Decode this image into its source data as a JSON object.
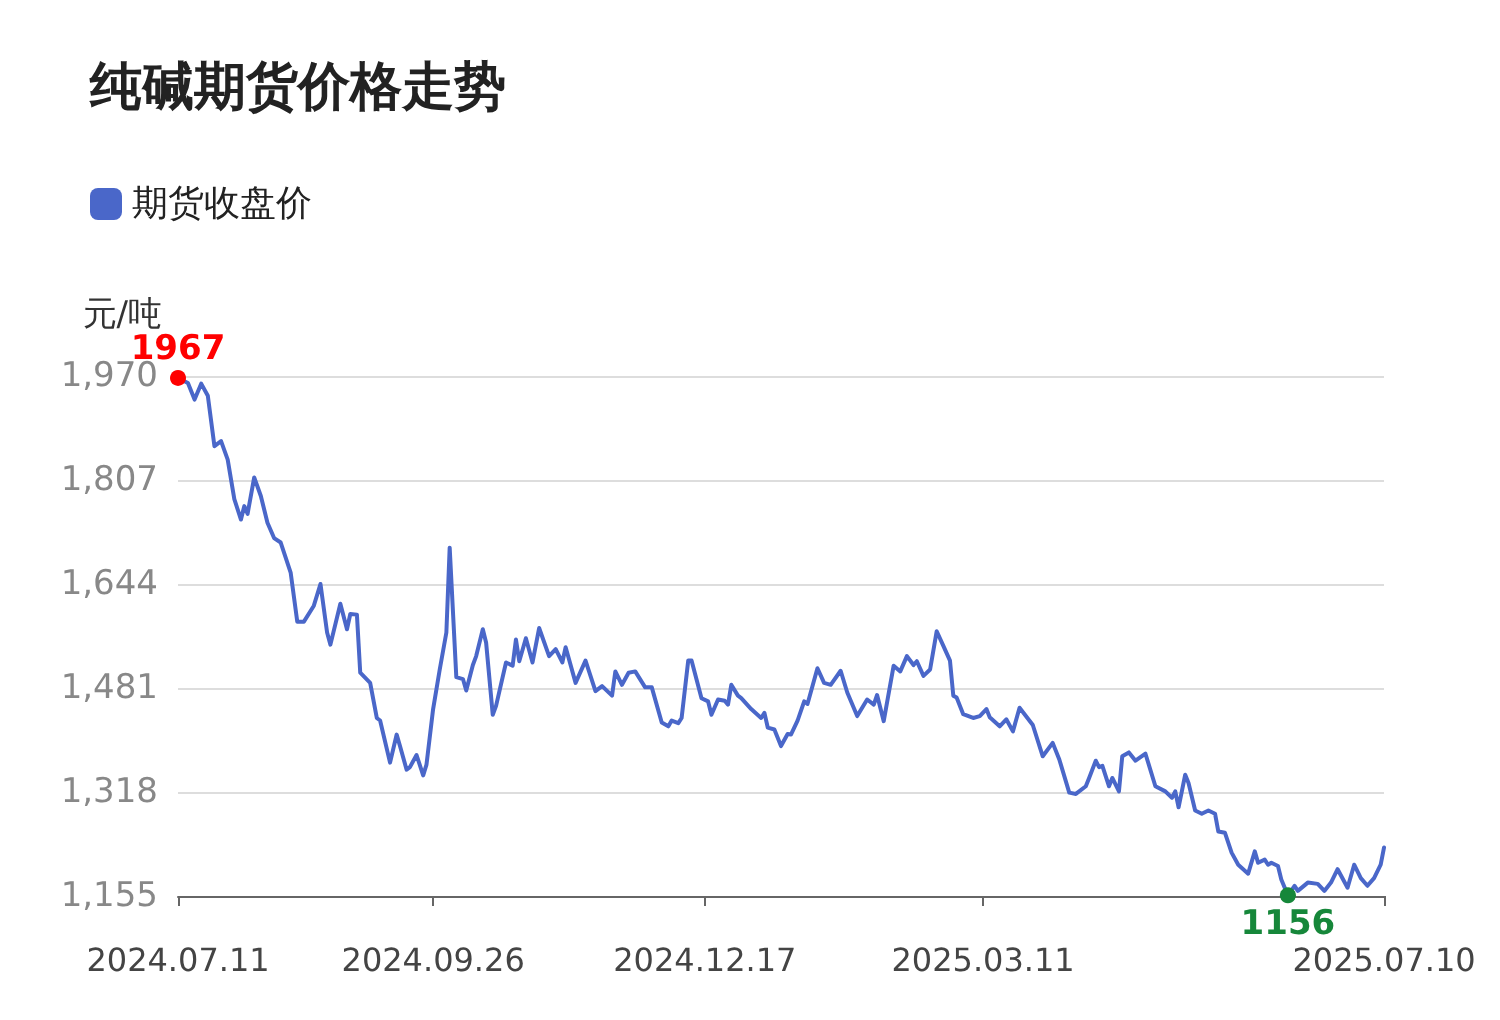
{
  "chart_data": {
    "type": "line",
    "title": "纯碱期货价格走势",
    "ylabel": "元/吨",
    "legend": "top left",
    "grid": "y",
    "marker": "none",
    "line_style": "solid",
    "ylim": [
      1155,
      1970
    ],
    "yticks": [
      {
        "value": 1155,
        "label": "1,155"
      },
      {
        "value": 1318,
        "label": "1,318"
      },
      {
        "value": 1481,
        "label": "1,481"
      },
      {
        "value": 1644,
        "label": "1,644"
      },
      {
        "value": 1807,
        "label": "1,807"
      },
      {
        "value": 1970,
        "label": "1,970"
      }
    ],
    "xlim": [
      "2024-07-11",
      "2025-07-10"
    ],
    "xticks": [
      {
        "value": "2024-07-11",
        "label": "2024.07.11"
      },
      {
        "value": "2024-09-26",
        "label": "2024.09.26"
      },
      {
        "value": "2024-12-17",
        "label": "2024.12.17"
      },
      {
        "value": "2025-03-11",
        "label": "2025.03.11"
      },
      {
        "value": "2025-07-10",
        "label": "2025.07.10"
      }
    ],
    "annotations": [
      {
        "text": "1967",
        "x": "2024-07-11",
        "y": 1967
      },
      {
        "text": "1156",
        "x": "2025-06-11",
        "y": 1156
      }
    ],
    "series": [
      {
        "name": "期货收盘价",
        "color": "#4a67c9",
        "x": [
          "2024-07-11",
          "2024-07-14",
          "2024-07-16",
          "2024-07-18",
          "2024-07-20",
          "2024-07-22",
          "2024-07-24",
          "2024-07-26",
          "2024-07-28",
          "2024-07-30",
          "2024-07-31",
          "2024-08-01",
          "2024-08-03",
          "2024-08-05",
          "2024-08-07",
          "2024-08-09",
          "2024-08-11",
          "2024-08-14",
          "2024-08-16",
          "2024-08-18",
          "2024-08-21",
          "2024-08-23",
          "2024-08-25",
          "2024-08-26",
          "2024-08-29",
          "2024-08-31",
          "2024-09-01",
          "2024-09-03",
          "2024-09-04",
          "2024-09-07",
          "2024-09-09",
          "2024-09-10",
          "2024-09-13",
          "2024-09-15",
          "2024-09-16",
          "2024-09-18",
          "2024-09-19",
          "2024-09-21",
          "2024-09-23",
          "2024-09-24",
          "2024-09-26",
          "2024-09-28",
          "2024-09-30",
          "2024-10-01",
          "2024-10-03",
          "2024-10-05",
          "2024-10-06",
          "2024-10-08",
          "2024-10-09",
          "2024-10-11",
          "2024-10-12",
          "2024-10-14",
          "2024-10-15",
          "2024-10-18",
          "2024-10-20",
          "2024-10-21",
          "2024-10-22",
          "2024-10-24",
          "2024-10-26",
          "2024-10-28",
          "2024-10-31",
          "2024-11-02",
          "2024-11-04",
          "2024-11-05",
          "2024-11-08",
          "2024-11-11",
          "2024-11-14",
          "2024-11-16",
          "2024-11-19",
          "2024-11-20",
          "2024-11-22",
          "2024-11-24",
          "2024-11-26",
          "2024-11-29",
          "2024-12-01",
          "2024-12-04",
          "2024-12-06",
          "2024-12-07",
          "2024-12-09",
          "2024-12-10",
          "2024-12-12",
          "2024-12-13",
          "2024-12-16",
          "2024-12-18",
          "2024-12-19",
          "2024-12-21",
          "2024-12-23",
          "2024-12-24",
          "2024-12-25",
          "2024-12-27",
          "2024-12-28",
          "2024-12-31",
          "2025-01-03",
          "2025-01-04",
          "2025-01-05",
          "2025-01-07",
          "2025-01-09",
          "2025-01-11",
          "2025-01-12",
          "2025-01-14",
          "2025-01-16",
          "2025-01-17",
          "2025-01-20",
          "2025-01-22",
          "2025-01-24",
          "2025-01-27",
          "2025-01-29",
          "2025-02-01",
          "2025-02-04",
          "2025-02-06",
          "2025-02-07",
          "2025-02-09",
          "2025-02-12",
          "2025-02-14",
          "2025-02-16",
          "2025-02-18",
          "2025-02-19",
          "2025-02-21",
          "2025-02-23",
          "2025-02-25",
          "2025-02-27",
          "2025-03-01",
          "2025-03-02",
          "2025-03-03",
          "2025-03-05",
          "2025-03-08",
          "2025-03-10",
          "2025-03-12",
          "2025-03-13",
          "2025-03-16",
          "2025-03-18",
          "2025-03-20",
          "2025-03-22",
          "2025-03-26",
          "2025-03-29",
          "2025-04-01",
          "2025-04-03",
          "2025-04-06",
          "2025-04-08",
          "2025-04-11",
          "2025-04-12",
          "2025-04-14",
          "2025-04-15",
          "2025-04-16",
          "2025-04-18",
          "2025-04-19",
          "2025-04-21",
          "2025-04-22",
          "2025-04-24",
          "2025-04-26",
          "2025-04-29",
          "2025-05-02",
          "2025-05-05",
          "2025-05-07",
          "2025-05-08",
          "2025-05-09",
          "2025-05-11",
          "2025-05-12",
          "2025-05-14",
          "2025-05-16",
          "2025-05-18",
          "2025-05-20",
          "2025-05-21",
          "2025-05-23",
          "2025-05-25",
          "2025-05-27",
          "2025-05-30",
          "2025-06-01",
          "2025-06-02",
          "2025-06-04",
          "2025-06-05",
          "2025-06-06",
          "2025-06-08",
          "2025-06-09",
          "2025-06-11",
          "2025-06-13",
          "2025-06-14",
          "2025-06-17",
          "2025-06-20",
          "2025-06-22",
          "2025-06-24",
          "2025-06-26",
          "2025-06-29",
          "2025-07-01",
          "2025-07-03",
          "2025-07-05",
          "2025-07-07",
          "2025-07-09",
          "2025-07-10"
        ],
        "values": [
          1967,
          1959,
          1933,
          1958,
          1939,
          1860,
          1868,
          1839,
          1777,
          1745,
          1766,
          1754,
          1811,
          1782,
          1740,
          1716,
          1709,
          1662,
          1585,
          1585,
          1610,
          1644,
          1568,
          1549,
          1613,
          1573,
          1597,
          1596,
          1505,
          1489,
          1434,
          1430,
          1364,
          1408,
          1390,
          1353,
          1357,
          1376,
          1344,
          1361,
          1448,
          1510,
          1568,
          1701,
          1498,
          1495,
          1477,
          1517,
          1531,
          1573,
          1552,
          1439,
          1453,
          1521,
          1516,
          1557,
          1523,
          1559,
          1521,
          1575,
          1531,
          1542,
          1521,
          1545,
          1489,
          1524,
          1476,
          1484,
          1469,
          1507,
          1486,
          1505,
          1507,
          1482,
          1482,
          1427,
          1421,
          1430,
          1426,
          1434,
          1524,
          1524,
          1465,
          1460,
          1439,
          1463,
          1461,
          1455,
          1486,
          1469,
          1465,
          1448,
          1434,
          1442,
          1419,
          1416,
          1390,
          1409,
          1408,
          1430,
          1460,
          1456,
          1512,
          1489,
          1486,
          1508,
          1474,
          1437,
          1463,
          1455,
          1470,
          1429,
          1516,
          1507,
          1531,
          1517,
          1523,
          1500,
          1510,
          1570,
          1547,
          1524,
          1469,
          1466,
          1440,
          1434,
          1437,
          1448,
          1435,
          1421,
          1432,
          1413,
          1450,
          1423,
          1374,
          1395,
          1369,
          1317,
          1315,
          1327,
          1340,
          1367,
          1357,
          1359,
          1327,
          1340,
          1319,
          1374,
          1380,
          1367,
          1378,
          1327,
          1319,
          1309,
          1319,
          1294,
          1345,
          1332,
          1289,
          1284,
          1289,
          1284,
          1256,
          1254,
          1223,
          1204,
          1190,
          1225,
          1207,
          1212,
          1204,
          1207,
          1202,
          1181,
          1156,
          1171,
          1163,
          1176,
          1174,
          1163,
          1176,
          1197,
          1168,
          1204,
          1183,
          1171,
          1183,
          1204,
          1231
        ]
      }
    ]
  }
}
